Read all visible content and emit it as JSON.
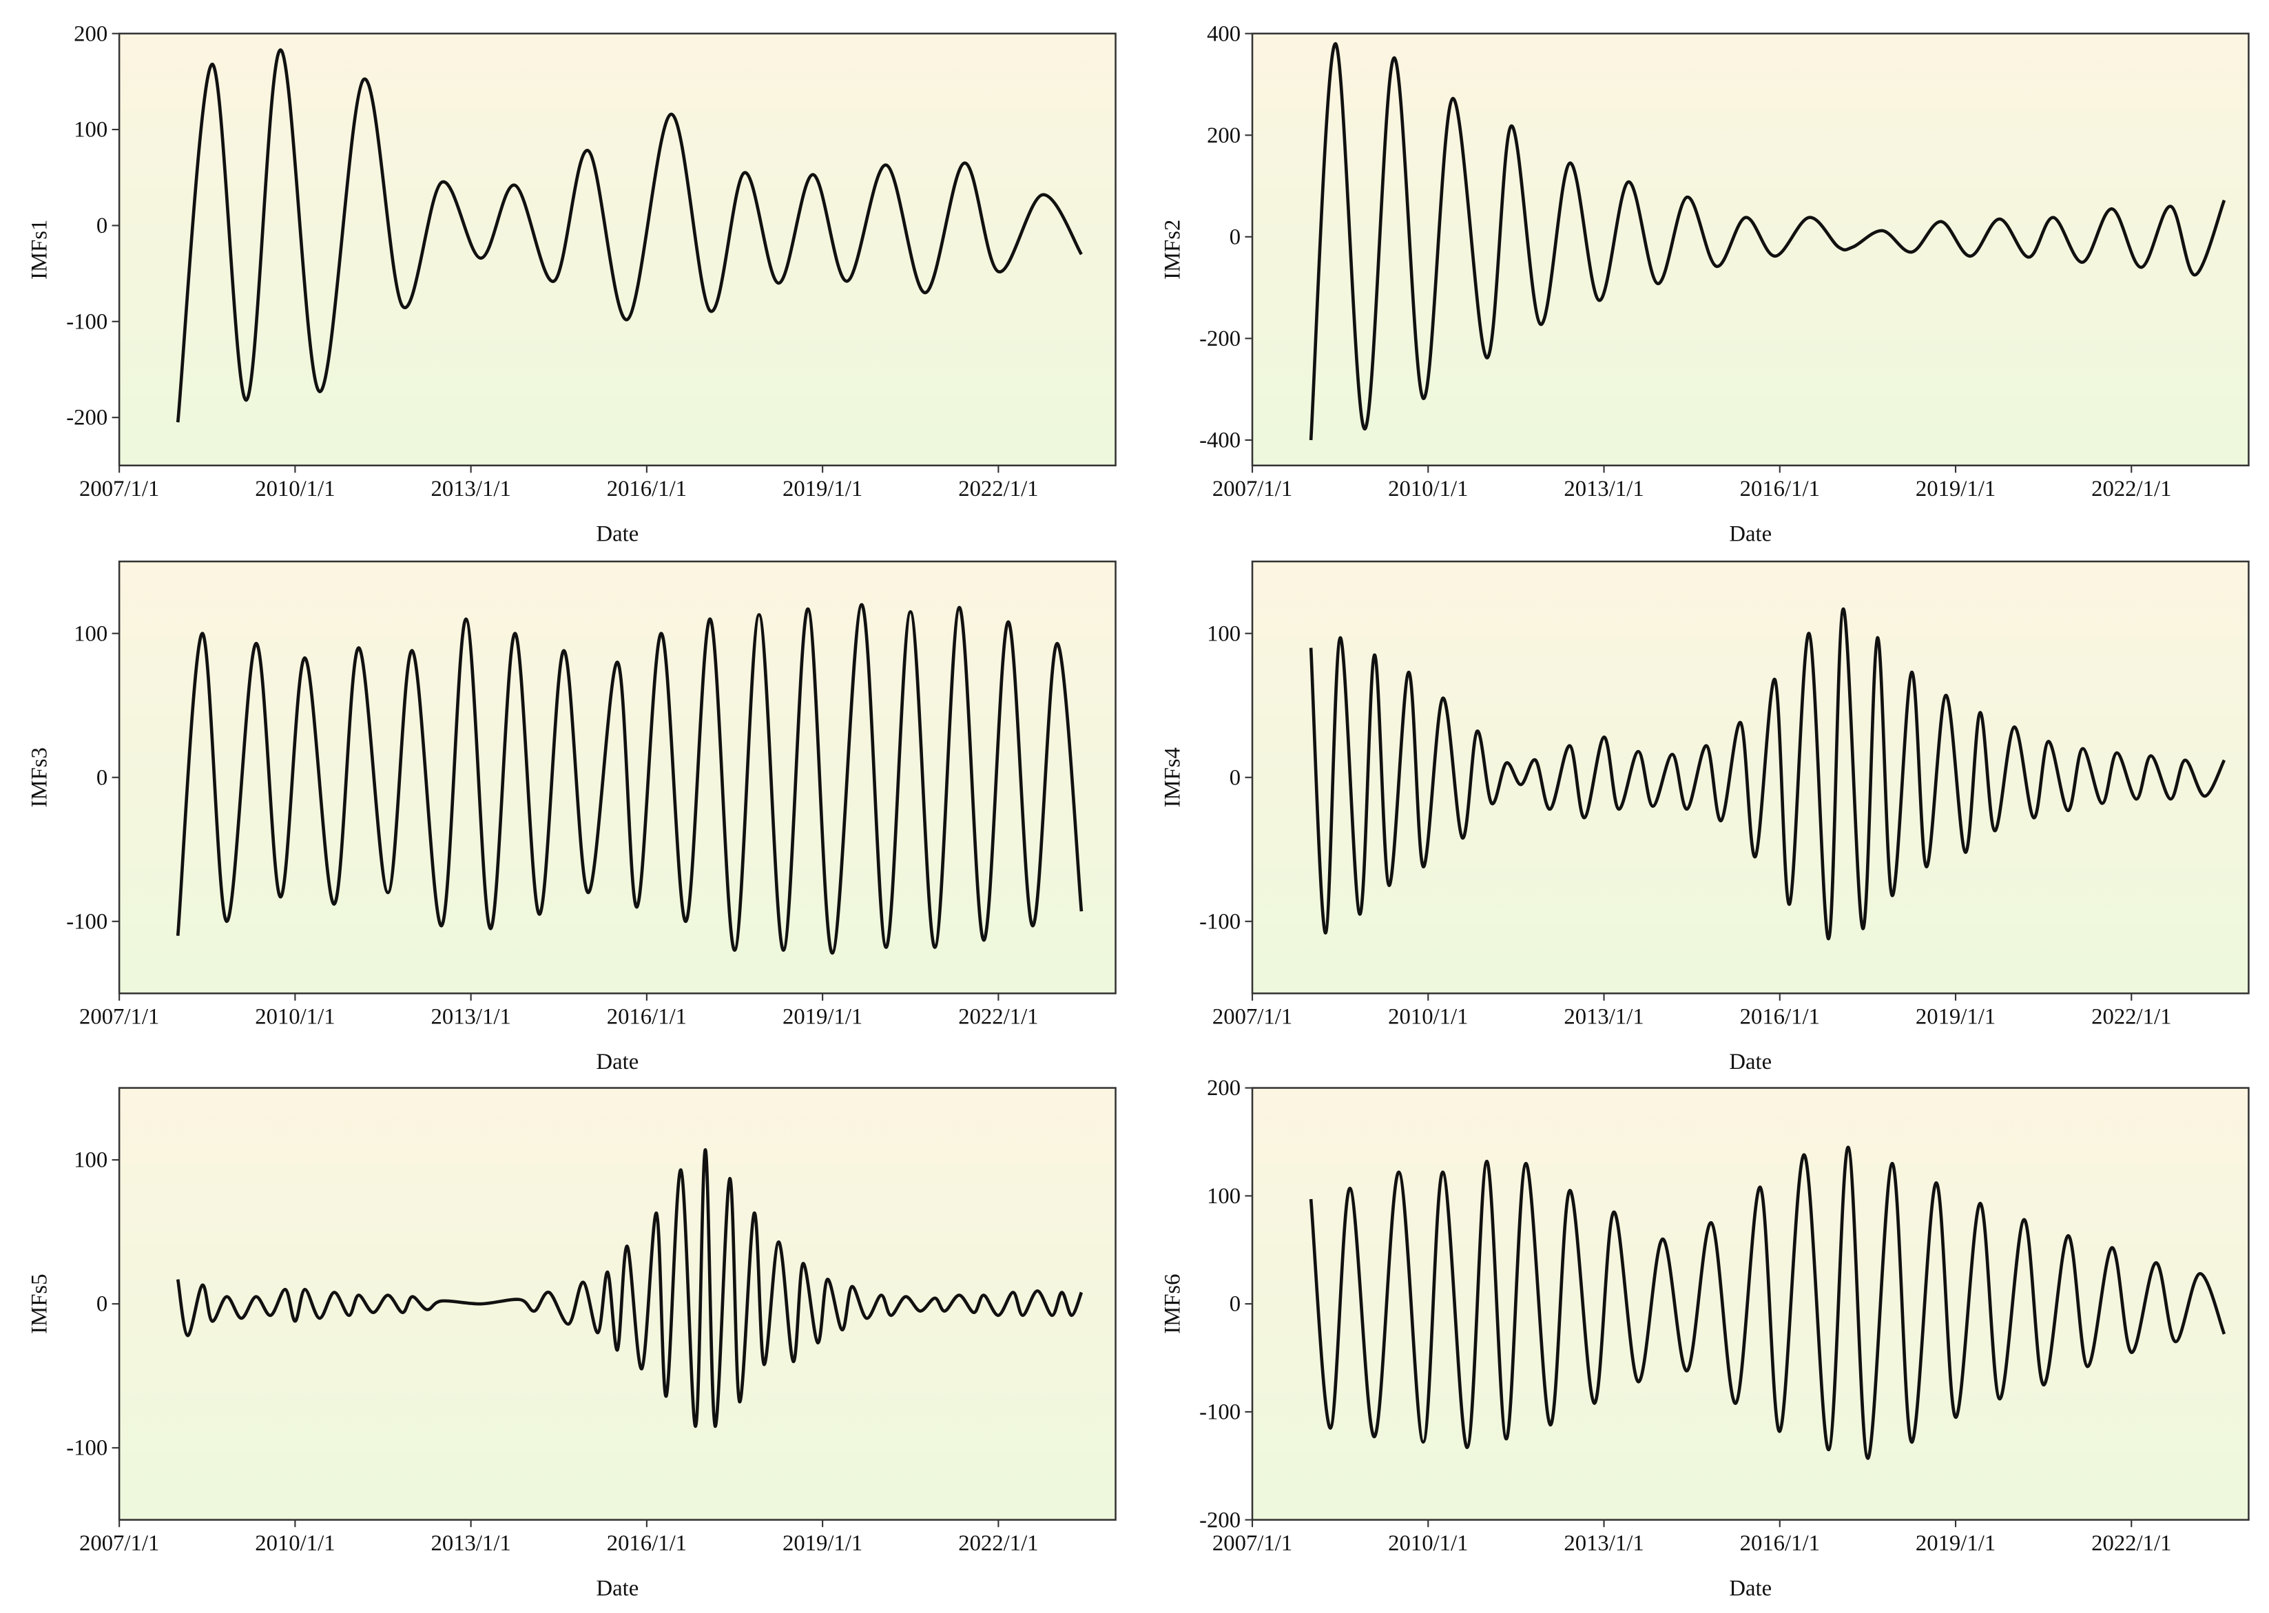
{
  "chart_data": [
    {
      "type": "line",
      "y_label": "IMFs1",
      "x_label": "Date",
      "color": "#111111",
      "xlim": [
        "2007/1/1",
        "2024/1/1"
      ],
      "xticks": [
        "2007/1/1",
        "2010/1/1",
        "2013/1/1",
        "2016/1/1",
        "2019/1/1",
        "2022/1/1"
      ],
      "ylim": [
        -250,
        200
      ],
      "yticks": [
        -200,
        -100,
        0,
        100,
        200
      ],
      "x": [
        "2008/1/1",
        "2008/8/1",
        "2009/3/1",
        "2009/10/1",
        "2010/6/1",
        "2011/3/1",
        "2011/11/1",
        "2012/7/1",
        "2013/3/1",
        "2013/10/1",
        "2014/6/1",
        "2015/1/1",
        "2015/9/1",
        "2016/6/1",
        "2017/2/1",
        "2017/9/1",
        "2018/4/1",
        "2018/11/1",
        "2019/6/1",
        "2020/2/1",
        "2020/10/1",
        "2021/6/1",
        "2022/1/1",
        "2022/10/1",
        "2023/6/1"
      ],
      "values": [
        -205,
        168,
        -182,
        183,
        -173,
        152,
        -84,
        45,
        -34,
        42,
        -58,
        78,
        -98,
        116,
        -89,
        55,
        -60,
        53,
        -58,
        63,
        -70,
        65,
        -48,
        32,
        -30
      ]
    },
    {
      "type": "line",
      "y_label": "IMFs2",
      "x_label": "Date",
      "color": "#111111",
      "xlim": [
        "2007/1/1",
        "2024/1/1"
      ],
      "xticks": [
        "2007/1/1",
        "2010/1/1",
        "2013/1/1",
        "2016/1/1",
        "2019/1/1",
        "2022/1/1"
      ],
      "ylim": [
        -450,
        400
      ],
      "yticks": [
        -400,
        -200,
        0,
        200,
        400
      ],
      "x": [
        "2008/1/1",
        "2008/6/1",
        "2008/12/1",
        "2009/6/1",
        "2009/12/1",
        "2010/6/1",
        "2011/1/1",
        "2011/6/1",
        "2011/12/1",
        "2012/6/1",
        "2012/12/1",
        "2013/6/1",
        "2013/12/1",
        "2014/6/1",
        "2014/12/1",
        "2015/6/1",
        "2015/12/1",
        "2016/7/1",
        "2017/1/1",
        "2017/4/1",
        "2017/10/1",
        "2018/4/1",
        "2018/10/1",
        "2019/4/1",
        "2019/10/1",
        "2020/4/1",
        "2020/9/1",
        "2021/3/1",
        "2021/9/1",
        "2022/3/1",
        "2022/9/1",
        "2023/2/1",
        "2023/8/1"
      ],
      "values": [
        -400,
        380,
        -378,
        352,
        -318,
        272,
        -238,
        218,
        -172,
        145,
        -125,
        108,
        -92,
        78,
        -58,
        38,
        -38,
        38,
        -20,
        -20,
        12,
        -30,
        30,
        -38,
        35,
        -40,
        38,
        -50,
        55,
        -60,
        60,
        -75,
        72
      ]
    },
    {
      "type": "line",
      "y_label": "IMFs3",
      "x_label": "Date",
      "color": "#111111",
      "xlim": [
        "2007/1/1",
        "2024/1/1"
      ],
      "xticks": [
        "2007/1/1",
        "2010/1/1",
        "2013/1/1",
        "2016/1/1",
        "2019/1/1",
        "2022/1/1"
      ],
      "ylim": [
        -150,
        150
      ],
      "yticks": [
        -100,
        0,
        100
      ],
      "x": [
        "2008/1/1",
        "2008/6/1",
        "2008/11/1",
        "2009/5/1",
        "2009/10/1",
        "2010/3/1",
        "2010/9/1",
        "2011/2/1",
        "2011/8/1",
        "2012/1/1",
        "2012/7/1",
        "2012/12/1",
        "2013/5/1",
        "2013/10/1",
        "2014/3/1",
        "2014/8/1",
        "2015/1/1",
        "2015/7/1",
        "2015/11/1",
        "2016/4/1",
        "2016/9/1",
        "2017/2/1",
        "2017/7/1",
        "2017/12/1",
        "2018/5/1",
        "2018/10/1",
        "2019/3/1",
        "2019/9/1",
        "2020/2/1",
        "2020/7/1",
        "2020/12/1",
        "2021/5/1",
        "2021/10/1",
        "2022/3/1",
        "2022/8/1",
        "2023/1/1",
        "2023/6/1"
      ],
      "values": [
        -110,
        100,
        -100,
        93,
        -83,
        83,
        -88,
        90,
        -80,
        88,
        -103,
        110,
        -105,
        100,
        -95,
        88,
        -80,
        80,
        -90,
        100,
        -100,
        110,
        -120,
        113,
        -120,
        117,
        -122,
        120,
        -118,
        115,
        -118,
        118,
        -113,
        108,
        -103,
        93,
        -93
      ]
    },
    {
      "type": "line",
      "y_label": "IMFs4",
      "x_label": "Date",
      "color": "#111111",
      "xlim": [
        "2007/1/1",
        "2024/1/1"
      ],
      "xticks": [
        "2007/1/1",
        "2010/1/1",
        "2013/1/1",
        "2016/1/1",
        "2019/1/1",
        "2022/1/1"
      ],
      "ylim": [
        -150,
        150
      ],
      "yticks": [
        -100,
        0,
        100
      ],
      "x": [
        "2008/1/1",
        "2008/4/1",
        "2008/7/1",
        "2008/11/1",
        "2009/2/1",
        "2009/5/1",
        "2009/9/1",
        "2009/12/1",
        "2010/4/1",
        "2010/8/1",
        "2010/11/1",
        "2011/2/1",
        "2011/5/1",
        "2011/8/1",
        "2011/11/1",
        "2012/2/1",
        "2012/6/1",
        "2012/9/1",
        "2013/1/1",
        "2013/4/1",
        "2013/8/1",
        "2013/11/1",
        "2014/3/1",
        "2014/6/1",
        "2014/10/1",
        "2015/1/1",
        "2015/5/1",
        "2015/8/1",
        "2015/12/1",
        "2016/3/1",
        "2016/7/1",
        "2016/11/1",
        "2017/2/1",
        "2017/6/1",
        "2017/9/1",
        "2017/12/1",
        "2018/4/1",
        "2018/7/1",
        "2018/11/1",
        "2019/3/1",
        "2019/6/1",
        "2019/9/1",
        "2020/1/1",
        "2020/5/1",
        "2020/8/1",
        "2020/12/1",
        "2021/3/1",
        "2021/7/1",
        "2021/10/1",
        "2022/2/1",
        "2022/5/1",
        "2022/9/1",
        "2022/12/1",
        "2023/4/1",
        "2023/8/1"
      ],
      "values": [
        90,
        -108,
        97,
        -95,
        85,
        -75,
        73,
        -62,
        55,
        -42,
        32,
        -18,
        10,
        -5,
        12,
        -22,
        22,
        -28,
        28,
        -22,
        18,
        -20,
        16,
        -22,
        22,
        -30,
        38,
        -55,
        68,
        -88,
        100,
        -112,
        117,
        -105,
        97,
        -82,
        73,
        -62,
        57,
        -52,
        45,
        -37,
        35,
        -28,
        25,
        -23,
        20,
        -18,
        17,
        -15,
        15,
        -15,
        12,
        -13,
        12
      ]
    },
    {
      "type": "line",
      "y_label": "IMFs5",
      "x_label": "Date",
      "color": "#111111",
      "xlim": [
        "2007/1/1",
        "2024/1/1"
      ],
      "xticks": [
        "2007/1/1",
        "2010/1/1",
        "2013/1/1",
        "2016/1/1",
        "2019/1/1",
        "2022/1/1"
      ],
      "ylim": [
        -150,
        150
      ],
      "yticks": [
        -100,
        0,
        100
      ],
      "x": [
        "2008/1/1",
        "2008/3/1",
        "2008/6/1",
        "2008/8/1",
        "2008/11/1",
        "2009/2/1",
        "2009/5/1",
        "2009/8/1",
        "2009/11/1",
        "2010/1/1",
        "2010/3/1",
        "2010/6/1",
        "2010/9/1",
        "2010/12/1",
        "2011/2/1",
        "2011/5/1",
        "2011/8/1",
        "2011/11/1",
        "2012/1/1",
        "2012/4/1",
        "2012/7/1",
        "2013/3/1",
        "2013/11/1",
        "2014/2/1",
        "2014/5/1",
        "2014/9/1",
        "2014/12/1",
        "2015/3/1",
        "2015/5/1",
        "2015/7/1",
        "2015/9/1",
        "2015/12/1",
        "2016/3/1",
        "2016/5/1",
        "2016/8/1",
        "2016/11/1",
        "2017/1/1",
        "2017/3/1",
        "2017/6/1",
        "2017/8/1",
        "2017/11/1",
        "2018/1/1",
        "2018/4/1",
        "2018/7/1",
        "2018/9/1",
        "2018/12/1",
        "2019/2/1",
        "2019/5/1",
        "2019/7/1",
        "2019/10/1",
        "2020/1/1",
        "2020/3/1",
        "2020/6/1",
        "2020/9/1",
        "2020/12/1",
        "2021/2/1",
        "2021/5/1",
        "2021/8/1",
        "2021/10/1",
        "2022/1/1",
        "2022/4/1",
        "2022/6/1",
        "2022/9/1",
        "2022/12/1",
        "2023/2/1",
        "2023/4/1",
        "2023/6/1"
      ],
      "values": [
        17,
        -22,
        13,
        -12,
        5,
        -10,
        5,
        -8,
        10,
        -12,
        10,
        -10,
        8,
        -8,
        6,
        -6,
        6,
        -6,
        5,
        -4,
        2,
        0,
        3,
        -5,
        8,
        -14,
        15,
        -20,
        22,
        -32,
        40,
        -45,
        63,
        -64,
        93,
        -85,
        107,
        -85,
        87,
        -68,
        63,
        -42,
        43,
        -40,
        28,
        -27,
        17,
        -18,
        12,
        -10,
        6,
        -8,
        5,
        -5,
        4,
        -5,
        6,
        -6,
        6,
        -8,
        8,
        -8,
        9,
        -8,
        8,
        -8,
        8
      ]
    },
    {
      "type": "line",
      "y_label": "IMFs6",
      "x_label": "Date",
      "color": "#111111",
      "xlim": [
        "2007/1/1",
        "2024/1/1"
      ],
      "xticks": [
        "2007/1/1",
        "2010/1/1",
        "2013/1/1",
        "2016/1/1",
        "2019/1/1",
        "2022/1/1"
      ],
      "ylim": [
        -200,
        200
      ],
      "yticks": [
        -200,
        -100,
        0,
        100,
        200
      ],
      "x": [
        "2008/1/1",
        "2008/5/1",
        "2008/9/1",
        "2009/2/1",
        "2009/7/1",
        "2009/12/1",
        "2010/4/1",
        "2010/9/1",
        "2011/1/1",
        "2011/5/1",
        "2011/9/1",
        "2012/2/1",
        "2012/6/1",
        "2012/11/1",
        "2013/3/1",
        "2013/8/1",
        "2014/1/1",
        "2014/6/1",
        "2014/11/1",
        "2015/4/1",
        "2015/9/1",
        "2016/1/1",
        "2016/6/1",
        "2016/11/1",
        "2017/3/1",
        "2017/7/1",
        "2017/12/1",
        "2018/4/1",
        "2018/9/1",
        "2019/1/1",
        "2019/6/1",
        "2019/10/1",
        "2020/3/1",
        "2020/7/1",
        "2020/12/1",
        "2021/4/1",
        "2021/9/1",
        "2022/1/1",
        "2022/6/1",
        "2022/10/1",
        "2023/3/1",
        "2023/8/1"
      ],
      "values": [
        97,
        -115,
        107,
        -123,
        122,
        -128,
        122,
        -133,
        132,
        -125,
        130,
        -112,
        105,
        -92,
        85,
        -72,
        60,
        -62,
        75,
        -92,
        108,
        -118,
        138,
        -135,
        145,
        -143,
        130,
        -128,
        112,
        -105,
        93,
        -88,
        78,
        -75,
        63,
        -58,
        52,
        -45,
        38,
        -35,
        28,
        -28
      ]
    }
  ]
}
